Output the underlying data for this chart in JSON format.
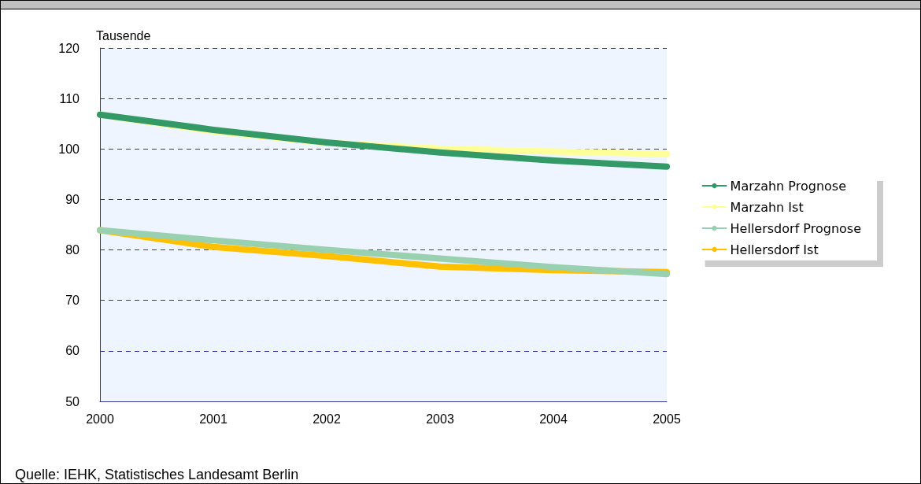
{
  "chart_data": {
    "type": "line",
    "ylabel": "Tausende",
    "categories": [
      "2000",
      "2001",
      "2002",
      "2003",
      "2004",
      "2005"
    ],
    "series": [
      {
        "name": "Marzahn Ist",
        "color": "#ffff99",
        "values": [
          106.8,
          103.5,
          101.2,
          100.1,
          99.5,
          99.0
        ]
      },
      {
        "name": "Marzahn Prognose",
        "color": "#339966",
        "values": [
          106.8,
          103.8,
          101.3,
          99.3,
          97.7,
          96.5
        ]
      },
      {
        "name": "Hellersdorf Ist",
        "color": "#ffc000",
        "values": [
          83.9,
          80.6,
          78.8,
          76.7,
          76.0,
          75.6
        ]
      },
      {
        "name": "Hellersdorf Prognose",
        "color": "#99d0b0",
        "values": [
          83.9,
          81.9,
          80.0,
          78.3,
          76.6,
          75.2
        ]
      }
    ],
    "ylim": [
      50,
      120
    ],
    "yticks": [
      50,
      60,
      70,
      80,
      90,
      100,
      110,
      120
    ],
    "grid": "y",
    "legend": "right",
    "marker": "none",
    "line_style": "solid",
    "annotations": [
      "Quelle: IEHK, Statistisches Landesamt Berlin"
    ]
  }
}
